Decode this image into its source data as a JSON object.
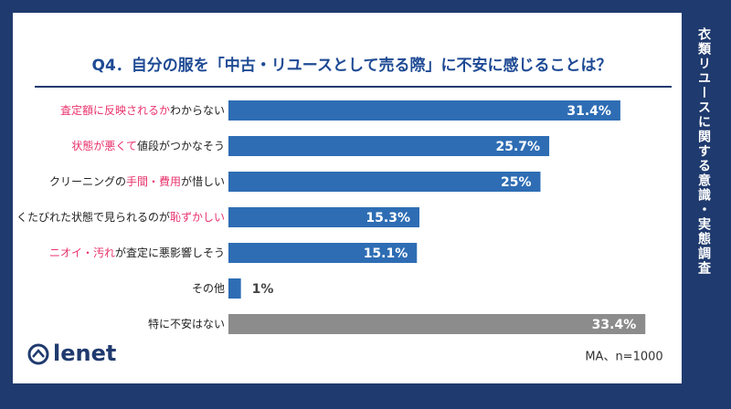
{
  "side_title": "衣類リユースに関する意識・実態調査",
  "brand": "lenet",
  "chart_data": {
    "type": "bar",
    "orientation": "horizontal",
    "title": "Q4．自分の服を「中古・リユースとして売る際」に不安に感じることは？",
    "note": "MA、n=1000",
    "highlight_color": "#e8336d",
    "categories": [
      [
        {
          "text": "査定額に反映されるか",
          "highlight": true
        },
        {
          "text": "わからない",
          "highlight": false
        }
      ],
      [
        {
          "text": "状態が悪くて",
          "highlight": true
        },
        {
          "text": "値段がつかなそう",
          "highlight": false
        }
      ],
      [
        {
          "text": "クリーニングの",
          "highlight": false
        },
        {
          "text": "手間・費用",
          "highlight": true
        },
        {
          "text": "が惜しい",
          "highlight": false
        }
      ],
      [
        {
          "text": "くたびれた状態で見られるのが",
          "highlight": false
        },
        {
          "text": "恥ずかしい",
          "highlight": true
        }
      ],
      [
        {
          "text": "ニオイ・汚れ",
          "highlight": true
        },
        {
          "text": "が査定に悪影響しそう",
          "highlight": false
        }
      ],
      [
        {
          "text": "その他",
          "highlight": false
        }
      ],
      [
        {
          "text": "特に不安はない",
          "highlight": false
        }
      ]
    ],
    "values": [
      31.4,
      25.7,
      25,
      15.3,
      15.1,
      1,
      33.4
    ],
    "value_labels": [
      "31.4%",
      "25.7%",
      "25%",
      "15.3%",
      "15.1%",
      "1%",
      "33.4%"
    ],
    "colors": [
      "#2e6db4",
      "#2e6db4",
      "#2e6db4",
      "#2e6db4",
      "#2e6db4",
      "#2e6db4",
      "#8c8c8c"
    ]
  }
}
